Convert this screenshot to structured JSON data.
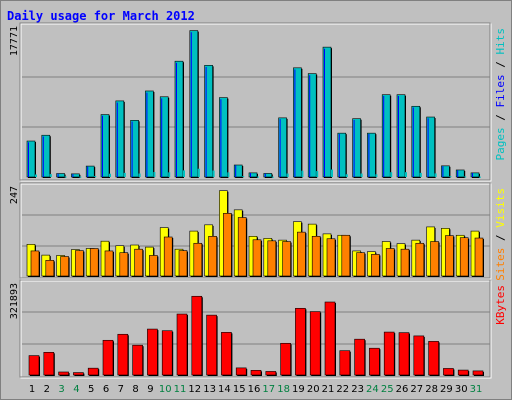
{
  "title": "Daily usage for March 2012",
  "colors": {
    "title": "#0000ff",
    "hits": "#00c0c0",
    "files": "#0000ff",
    "pages": "#00c0c0",
    "sites": "#ff8000",
    "visits": "#ffff00",
    "kbytes": "#ff0000",
    "panel_bg": "#c0c0c0",
    "weekend_label": "#008040",
    "weekday_label": "#000000"
  },
  "chart_data": [
    {
      "type": "bar",
      "panel": "hits_files_pages",
      "y_max_label": "17771",
      "ylim": [
        0,
        17771
      ],
      "legend": [
        "Pages",
        "Files",
        "Hits"
      ],
      "categories": [
        "1",
        "2",
        "3",
        "4",
        "5",
        "6",
        "7",
        "8",
        "9",
        "10",
        "11",
        "12",
        "13",
        "14",
        "15",
        "16",
        "17",
        "18",
        "19",
        "20",
        "21",
        "22",
        "23",
        "24",
        "25",
        "26",
        "27",
        "28",
        "29",
        "30",
        "31"
      ],
      "series": [
        {
          "name": "Hits",
          "values": [
            4350,
            5050,
            420,
            380,
            1320,
            7550,
            9200,
            6850,
            10400,
            9700,
            14000,
            17700,
            13500,
            9600,
            1450,
            500,
            430,
            7150,
            13200,
            12500,
            15700,
            5300,
            7050,
            5300,
            9950,
            9950,
            8550,
            7250,
            1350,
            850,
            500
          ]
        },
        {
          "name": "Files",
          "values": [
            4200,
            4900,
            400,
            350,
            1250,
            7400,
            9000,
            6700,
            10200,
            9500,
            13800,
            17500,
            13300,
            9400,
            1400,
            480,
            410,
            7000,
            13000,
            12300,
            15500,
            5200,
            6900,
            5200,
            9800,
            9800,
            8400,
            7100,
            1300,
            800,
            480
          ]
        },
        {
          "name": "Pages",
          "values": [
            300,
            350,
            60,
            50,
            120,
            400,
            500,
            420,
            600,
            560,
            800,
            1000,
            780,
            560,
            110,
            45,
            40,
            420,
            760,
            720,
            900,
            330,
            420,
            330,
            580,
            580,
            500,
            430,
            100,
            70,
            40
          ]
        }
      ]
    },
    {
      "type": "bar",
      "panel": "sites_visits",
      "y_max_label": "247",
      "ylim": [
        0,
        247
      ],
      "legend": [
        "Sites",
        "Visits"
      ],
      "categories": [
        "1",
        "2",
        "3",
        "4",
        "5",
        "6",
        "7",
        "8",
        "9",
        "10",
        "11",
        "12",
        "13",
        "14",
        "15",
        "16",
        "17",
        "18",
        "19",
        "20",
        "21",
        "22",
        "23",
        "24",
        "25",
        "26",
        "27",
        "28",
        "29",
        "30",
        "31"
      ],
      "series": [
        {
          "name": "Visits",
          "values": [
            91,
            60,
            59,
            76,
            79,
            100,
            87,
            89,
            83,
            139,
            77,
            129,
            147,
            245,
            190,
            114,
            108,
            103,
            156,
            149,
            121,
            117,
            72,
            70,
            99,
            93,
            103,
            141,
            137,
            117,
            129
          ]
        },
        {
          "name": "Sites",
          "values": [
            72,
            45,
            56,
            73,
            79,
            72,
            67,
            77,
            59,
            112,
            73,
            94,
            114,
            180,
            168,
            104,
            101,
            99,
            126,
            114,
            107,
            117,
            67,
            62,
            79,
            77,
            94,
            99,
            116,
            110,
            109
          ]
        }
      ]
    },
    {
      "type": "bar",
      "panel": "kbytes",
      "y_max_label": "321893",
      "ylim": [
        0,
        321893
      ],
      "legend": [
        "KBytes"
      ],
      "categories": [
        "1",
        "2",
        "3",
        "4",
        "5",
        "6",
        "7",
        "8",
        "9",
        "10",
        "11",
        "12",
        "13",
        "14",
        "15",
        "16",
        "17",
        "18",
        "19",
        "20",
        "21",
        "22",
        "23",
        "24",
        "25",
        "26",
        "27",
        "28",
        "29",
        "30",
        "31"
      ],
      "series": [
        {
          "name": "KBytes",
          "values": [
            71000,
            83000,
            11000,
            9000,
            25000,
            127000,
            149000,
            109000,
            168000,
            162000,
            223000,
            288000,
            219000,
            156000,
            26000,
            17000,
            13000,
            116000,
            244000,
            232000,
            267000,
            89000,
            131000,
            98000,
            157000,
            155000,
            143000,
            123000,
            24000,
            18000,
            15000
          ]
        }
      ]
    }
  ]
}
